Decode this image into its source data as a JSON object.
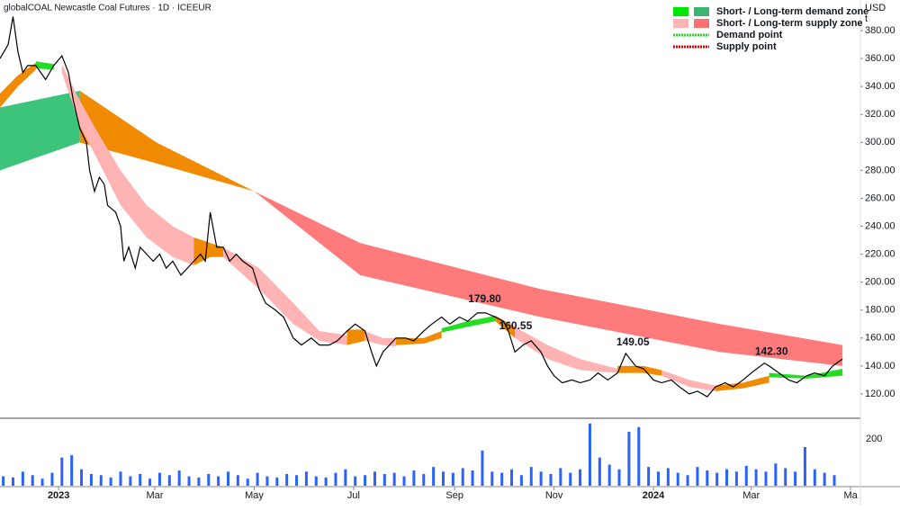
{
  "chart_data": {
    "type": "line",
    "title": "globalCOAL Newcastle Coal Futures · 1D · ICEEUR",
    "y_unit": "USD",
    "y_unit2": "t",
    "xlim": [
      -36,
      492
    ],
    "ylim": [
      102.6,
      401.9
    ],
    "xticks": [
      {
        "value": 0,
        "label": "2023"
      },
      {
        "value": 59,
        "label": "Mar"
      },
      {
        "value": 120,
        "label": "May"
      },
      {
        "value": 181,
        "label": "Jul"
      },
      {
        "value": 243,
        "label": "Sep"
      },
      {
        "value": 304,
        "label": "Nov"
      },
      {
        "value": 365,
        "label": "2024"
      },
      {
        "value": 425,
        "label": "Mar"
      },
      {
        "value": 486,
        "label": "Ma"
      }
    ],
    "yticks": [
      {
        "value": 120,
        "label": "120.00"
      },
      {
        "value": 140,
        "label": "140.00"
      },
      {
        "value": 160,
        "label": "160.00"
      },
      {
        "value": 180,
        "label": "180.00"
      },
      {
        "value": 200,
        "label": "200.00"
      },
      {
        "value": 220,
        "label": "220.00"
      },
      {
        "value": 240,
        "label": "240.00"
      },
      {
        "value": 260,
        "label": "260.00"
      },
      {
        "value": 280,
        "label": "280.00"
      },
      {
        "value": 300,
        "label": "300.00"
      },
      {
        "value": 320,
        "label": "320.00"
      },
      {
        "value": 340,
        "label": "340.00"
      },
      {
        "value": 360,
        "label": "360.00"
      },
      {
        "value": 380,
        "label": "380.00"
      }
    ],
    "series": [
      {
        "color": "#000000",
        "x": [
          -36,
          -31,
          -28,
          -25,
          -22,
          -19,
          -14,
          -8,
          -3,
          2,
          6,
          9,
          13,
          17,
          19,
          22,
          25,
          28,
          30,
          35,
          38,
          40,
          43,
          47,
          50,
          54,
          58,
          62,
          66,
          70,
          75,
          79,
          83,
          87,
          90,
          93,
          97,
          101,
          105,
          109,
          113,
          119,
          123,
          127,
          133,
          138,
          144,
          149,
          155,
          160,
          166,
          171,
          177,
          182,
          188,
          192,
          195,
          199,
          203,
          207,
          213,
          218,
          224,
          229,
          235,
          240,
          246,
          251,
          257,
          262,
          268,
          273,
          276,
          280,
          285,
          290,
          296,
          300,
          304,
          309,
          315,
          320,
          326,
          331,
          337,
          343,
          348,
          354,
          359,
          365,
          370,
          376,
          381,
          387,
          392,
          398,
          403,
          409,
          414,
          420,
          425,
          433,
          436,
          442,
          448,
          453,
          459,
          464,
          470,
          475,
          481
        ],
        "values": [
          360,
          370,
          390,
          365,
          350,
          355,
          355,
          345,
          355,
          362,
          350,
          330,
          310,
          300,
          280,
          265,
          275,
          270,
          255,
          250,
          240,
          215,
          225,
          210,
          225,
          220,
          215,
          220,
          210,
          215,
          205,
          210,
          215,
          220,
          215,
          250,
          225,
          225,
          215,
          220,
          215,
          210,
          195,
          185,
          180,
          175,
          160,
          155,
          160,
          155,
          155,
          158,
          165,
          170,
          165,
          150,
          140,
          150,
          155,
          160,
          160,
          158,
          165,
          170,
          175,
          170,
          175,
          172,
          178,
          178,
          175,
          172,
          165,
          150,
          155,
          158,
          150,
          140,
          133,
          128,
          130,
          128,
          130,
          135,
          130,
          135,
          149,
          140,
          138,
          130,
          128,
          130,
          125,
          120,
          122,
          118,
          125,
          128,
          125,
          130,
          135,
          142,
          140,
          135,
          130,
          128,
          133,
          135,
          133,
          140,
          145
        ]
      }
    ],
    "zones": [
      {
        "color": "#3cc47a",
        "x": [
          -36,
          13
        ],
        "upper": [
          325,
          337
        ],
        "lower": [
          280,
          300
        ]
      },
      {
        "color": "#f08a00",
        "x": [
          13,
          60,
          120
        ],
        "upper": [
          337,
          300,
          265
        ],
        "lower": [
          300,
          285,
          265
        ]
      },
      {
        "color": "#ff7a7a",
        "x": [
          120,
          185,
          296,
          406,
          481
        ],
        "upper": [
          265,
          228,
          195,
          170,
          155
        ],
        "lower": [
          265,
          205,
          175,
          150,
          140
        ]
      },
      {
        "color": "#f08a00",
        "x": [
          -36,
          -25,
          -14
        ],
        "upper": [
          335,
          348,
          357
        ],
        "lower": [
          325,
          340,
          352
        ]
      },
      {
        "color": "#22dd22",
        "x": [
          -14,
          -3
        ],
        "upper": [
          358,
          356
        ],
        "lower": [
          353,
          352
        ]
      },
      {
        "color": "#ffb3b3",
        "x": [
          2,
          13,
          25,
          38,
          54,
          70,
          83
        ],
        "upper": [
          356,
          330,
          305,
          280,
          255,
          240,
          232
        ],
        "lower": [
          350,
          312,
          285,
          255,
          232,
          218,
          212
        ]
      },
      {
        "color": "#f08a00",
        "x": [
          83,
          93,
          101
        ],
        "upper": [
          232,
          228,
          225
        ],
        "lower": [
          212,
          218,
          218
        ]
      },
      {
        "color": "#ffb3b3",
        "x": [
          101,
          123,
          144,
          160,
          177
        ],
        "upper": [
          225,
          210,
          185,
          165,
          162
        ],
        "lower": [
          218,
          195,
          170,
          158,
          155
        ]
      },
      {
        "color": "#f08a00",
        "x": [
          177,
          188
        ],
        "upper": [
          166,
          166
        ],
        "lower": [
          155,
          158
        ]
      },
      {
        "color": "#ffb3b3",
        "x": [
          188,
          199,
          207
        ],
        "upper": [
          165,
          160,
          160
        ],
        "lower": [
          158,
          155,
          154
        ]
      },
      {
        "color": "#f08a00",
        "x": [
          207,
          224,
          235
        ],
        "upper": [
          160,
          160,
          165
        ],
        "lower": [
          155,
          156,
          160
        ]
      },
      {
        "color": "#22dd22",
        "x": [
          235,
          251,
          268
        ],
        "upper": [
          167,
          172,
          176
        ],
        "lower": [
          164,
          168,
          172
        ]
      },
      {
        "color": "#f08a00",
        "x": [
          268,
          280
        ],
        "upper": [
          176,
          168
        ],
        "lower": [
          172,
          160
        ]
      },
      {
        "color": "#ffb3b3",
        "x": [
          280,
          300,
          320,
          343
        ],
        "upper": [
          168,
          155,
          145,
          138
        ],
        "lower": [
          160,
          145,
          137,
          135
        ]
      },
      {
        "color": "#f08a00",
        "x": [
          343,
          359,
          370
        ],
        "upper": [
          140,
          140,
          137
        ],
        "lower": [
          135,
          135,
          133
        ]
      },
      {
        "color": "#ffb3b3",
        "x": [
          370,
          387,
          403
        ],
        "upper": [
          137,
          130,
          126
        ],
        "lower": [
          133,
          125,
          122
        ]
      },
      {
        "color": "#f08a00",
        "x": [
          403,
          420,
          436
        ],
        "upper": [
          126,
          128,
          133
        ],
        "lower": [
          122,
          124,
          128
        ]
      },
      {
        "color": "#22dd22",
        "x": [
          436,
          459,
          481
        ],
        "upper": [
          135,
          133,
          138
        ],
        "lower": [
          132,
          131,
          133
        ]
      }
    ],
    "annotations": [
      {
        "x": 257,
        "value": 179.8,
        "label": "179.80"
      },
      {
        "x": 276,
        "value": 160.55,
        "label": "160.55"
      },
      {
        "x": 348,
        "value": 149.05,
        "label": "149.05"
      },
      {
        "x": 433,
        "value": 142.3,
        "label": "142.30"
      }
    ],
    "legend": [
      {
        "label": "Short- / Long-term demand zone",
        "colors": [
          "#00e600",
          "#3cb371"
        ]
      },
      {
        "label": "Short- / Long-term supply zone",
        "colors": [
          "#ffb3b3",
          "#ff7070"
        ]
      },
      {
        "label": "Demand point",
        "colors": [
          "#22dd22"
        ]
      },
      {
        "label": "Supply point",
        "colors": [
          "#e00000"
        ]
      }
    ],
    "volume": {
      "color": "#2962ff",
      "ylim": [
        0,
        280
      ],
      "yticks": [
        200
      ],
      "x0": -34,
      "step": 6,
      "values": [
        40,
        35,
        60,
        45,
        30,
        55,
        120,
        130,
        70,
        50,
        45,
        35,
        60,
        40,
        50,
        30,
        55,
        45,
        65,
        40,
        35,
        50,
        40,
        60,
        45,
        30,
        55,
        40,
        35,
        50,
        45,
        60,
        40,
        35,
        55,
        70,
        40,
        45,
        60,
        50,
        55,
        40,
        65,
        50,
        80,
        60,
        55,
        75,
        65,
        150,
        60,
        55,
        70,
        45,
        80,
        60,
        50,
        75,
        55,
        70,
        265,
        120,
        90,
        70,
        230,
        250,
        80,
        60,
        75,
        55,
        45,
        80,
        65,
        55,
        70,
        60,
        85,
        70,
        60,
        95,
        75,
        60,
        165,
        70,
        55,
        45
      ]
    }
  }
}
